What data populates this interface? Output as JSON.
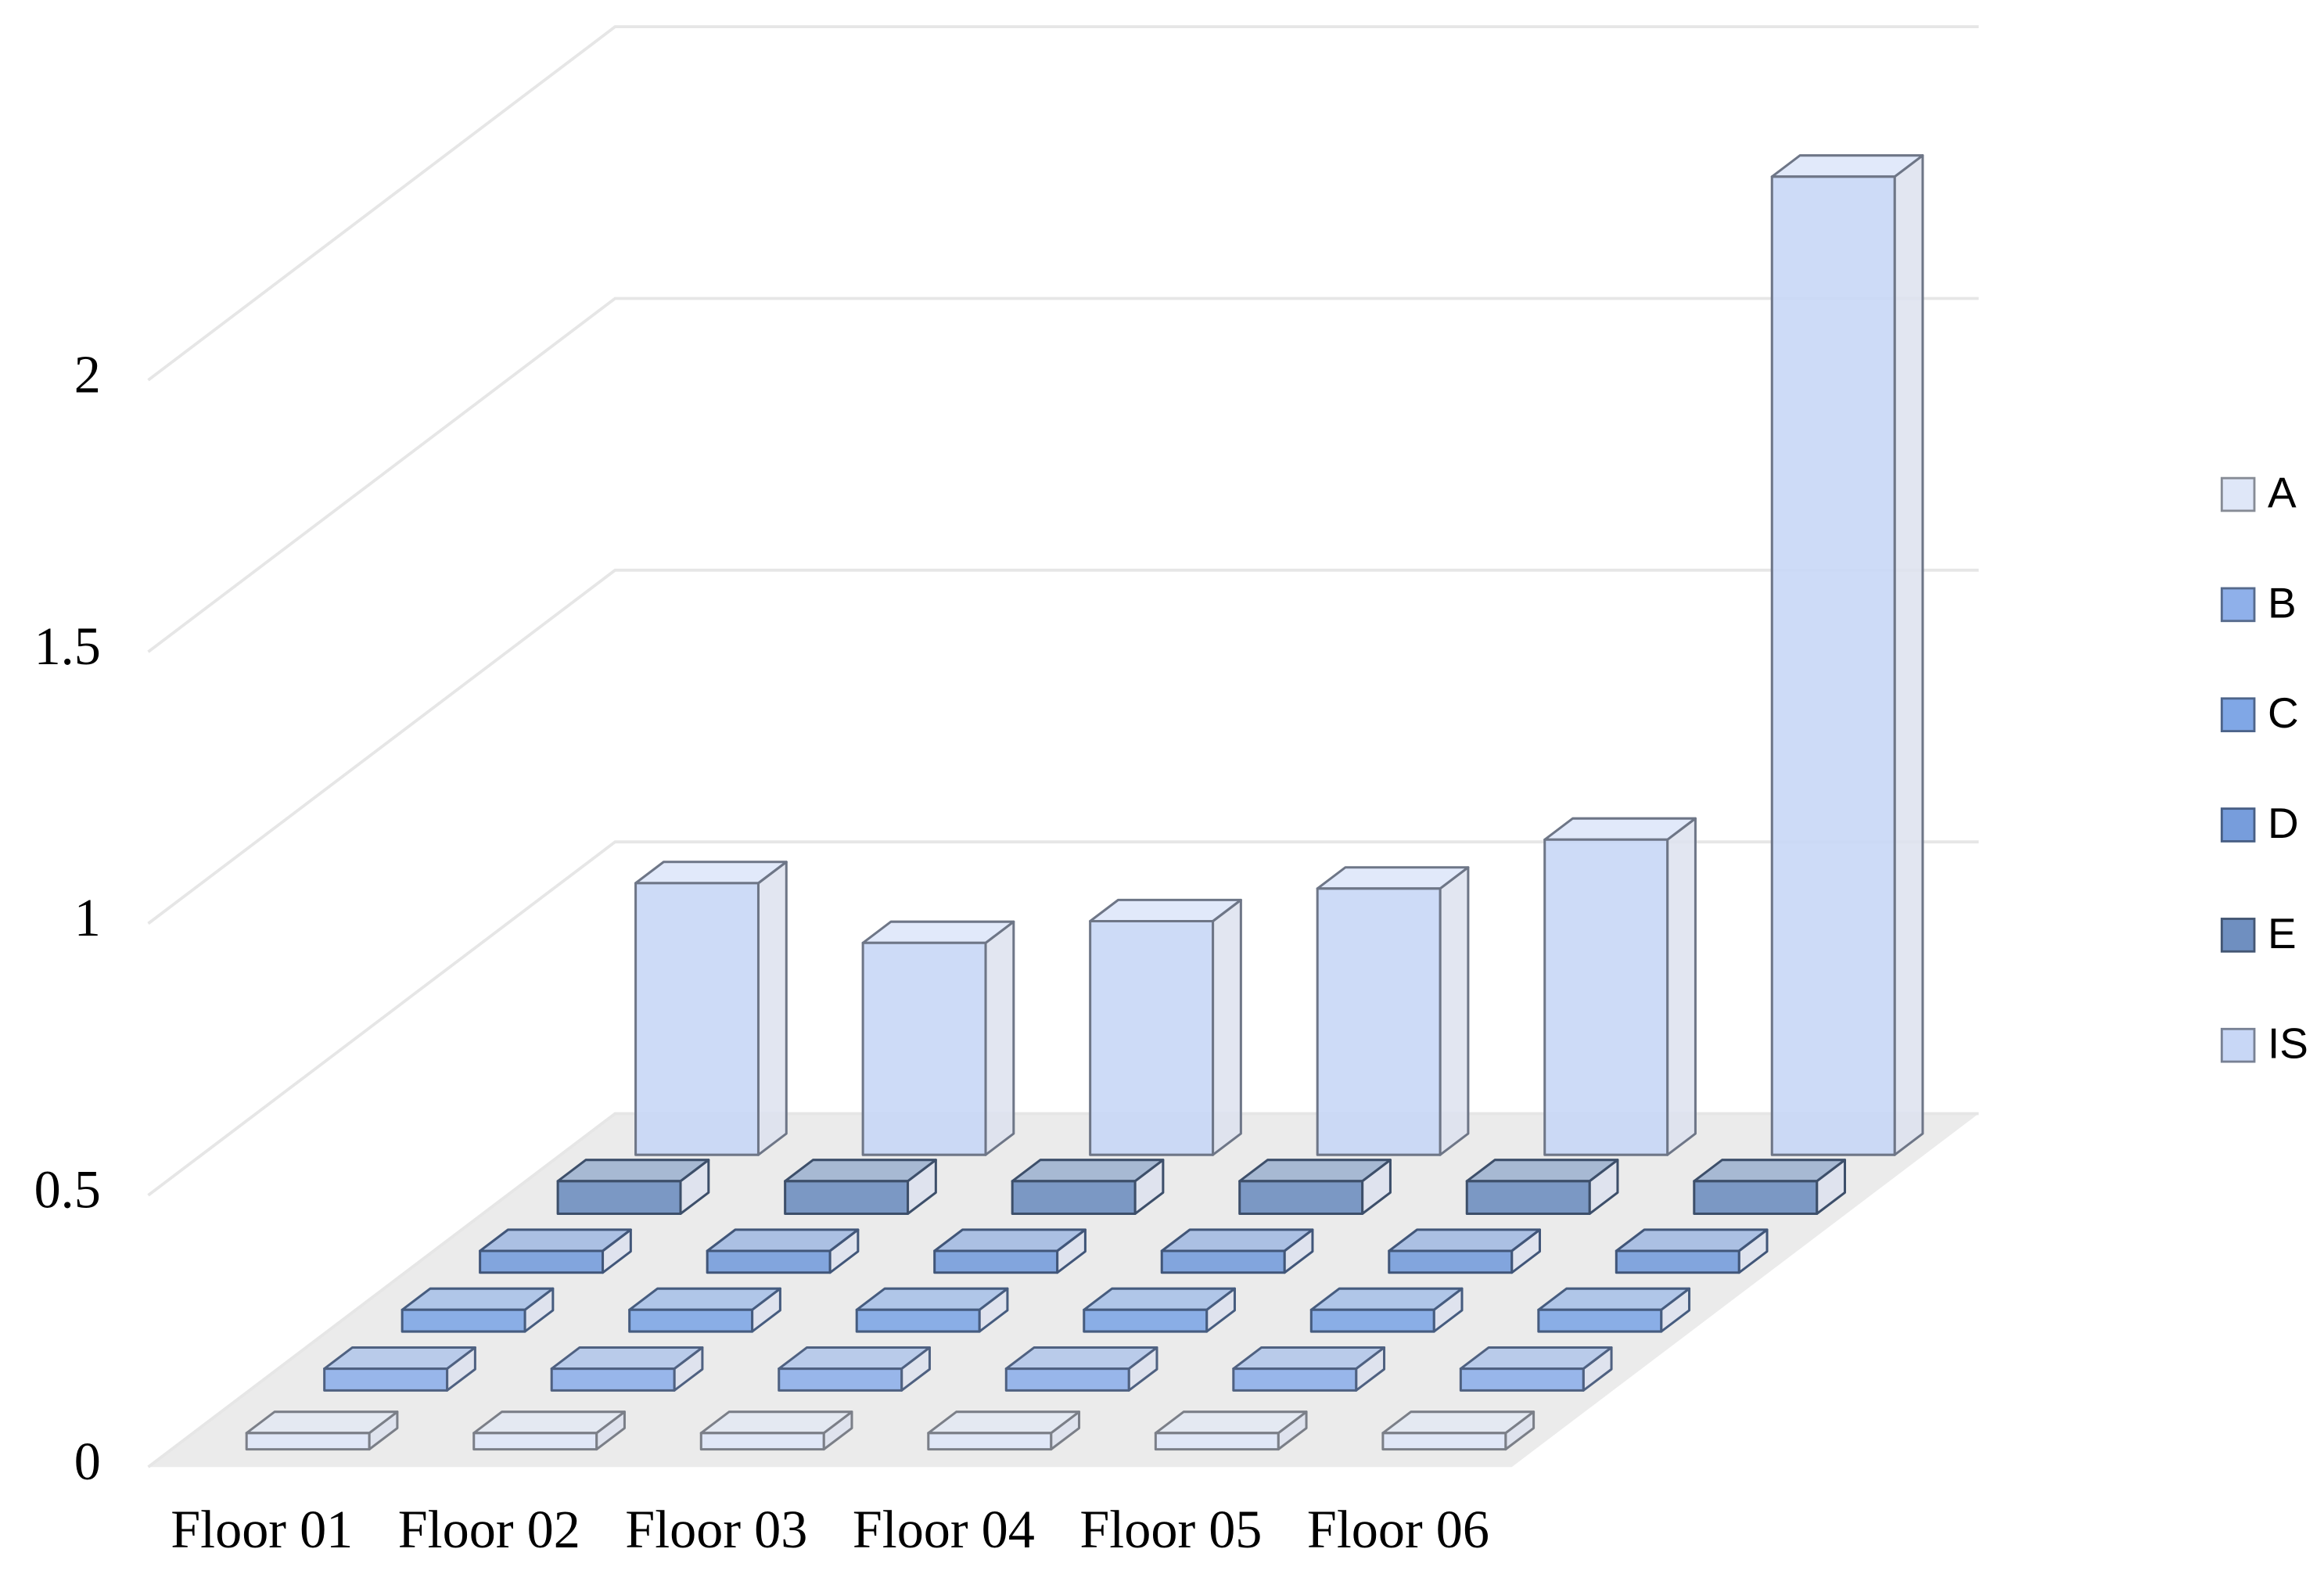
{
  "chart_data": {
    "type": "bar3d",
    "categories": [
      "Floor 01",
      "Floor 02",
      "Floor 03",
      "Floor 04",
      "Floor 05",
      "Floor 06"
    ],
    "series": [
      {
        "name": "A",
        "color": "#dfe7f8",
        "values": [
          0.03,
          0.03,
          0.03,
          0.03,
          0.03,
          0.03
        ]
      },
      {
        "name": "B",
        "color": "#8fb0ea",
        "values": [
          0.04,
          0.04,
          0.04,
          0.04,
          0.04,
          0.04
        ]
      },
      {
        "name": "C",
        "color": "#80a7e6",
        "values": [
          0.04,
          0.04,
          0.04,
          0.04,
          0.04,
          0.04
        ]
      },
      {
        "name": "D",
        "color": "#779ddc",
        "values": [
          0.04,
          0.04,
          0.04,
          0.04,
          0.04,
          0.04
        ]
      },
      {
        "name": "E",
        "color": "#6f8fc0",
        "values": [
          0.06,
          0.06,
          0.06,
          0.06,
          0.06,
          0.06
        ]
      },
      {
        "name": "IS",
        "color": "#c8d7f6",
        "values": [
          0.5,
          0.39,
          0.43,
          0.49,
          0.58,
          1.8
        ]
      }
    ],
    "ylim": [
      0,
      2
    ],
    "yticks": [
      0,
      0.5,
      1,
      1.5,
      2
    ],
    "grid": true,
    "legend": "right"
  }
}
